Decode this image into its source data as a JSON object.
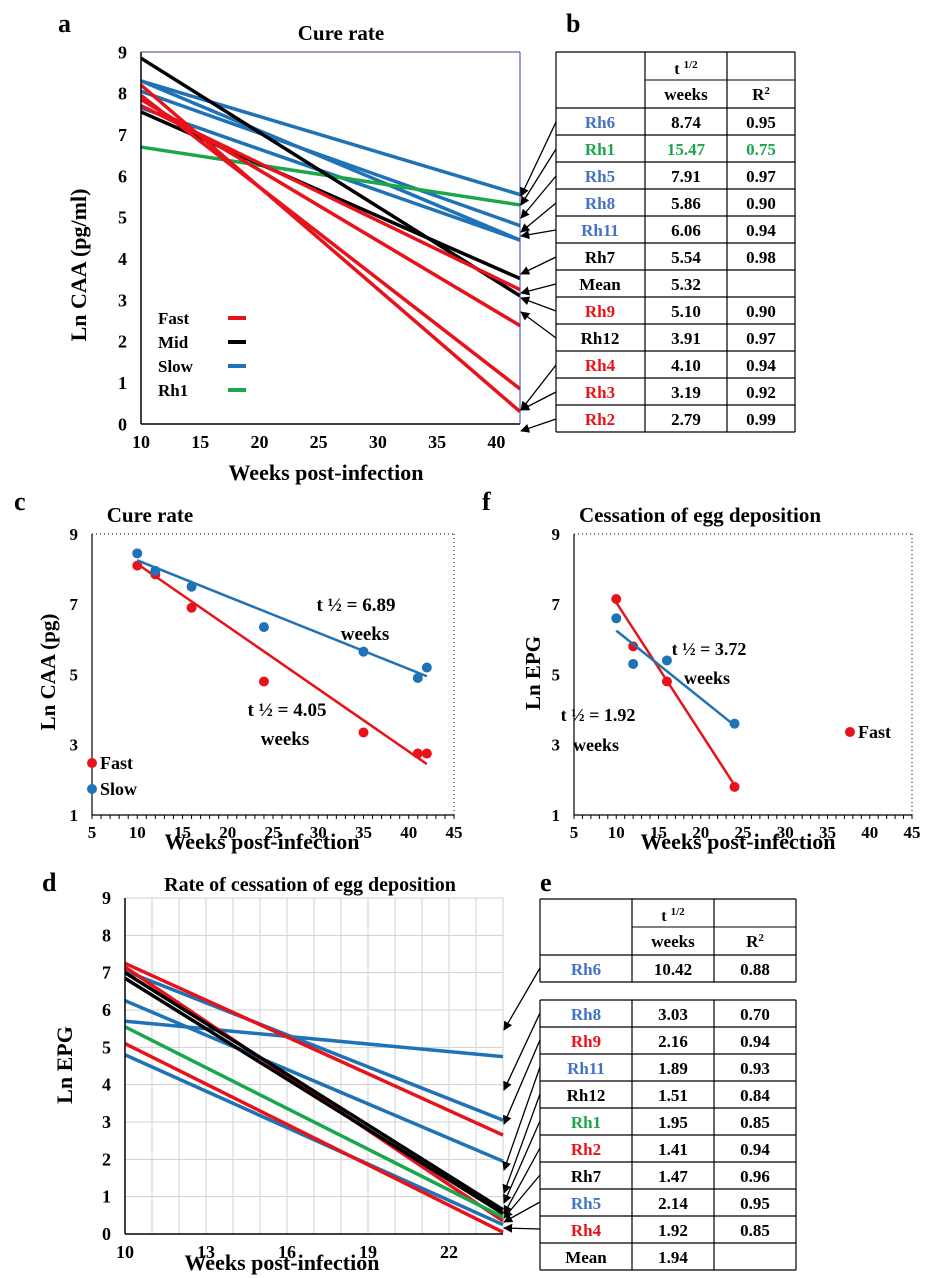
{
  "panels": {
    "a": {
      "letter": "a",
      "title": "Cure rate",
      "xlabel": "Weeks post-infection",
      "ylabel": "Ln CAA (pg/ml)",
      "legend": [
        {
          "label": "Fast",
          "color": "#e8131a"
        },
        {
          "label": "Mid",
          "color": "#000000"
        },
        {
          "label": "Slow",
          "color": "#1f72b6"
        },
        {
          "label": "Rh1",
          "color": "#1aa64a"
        }
      ]
    },
    "b": {
      "letter": "b",
      "header": {
        "t_half": "t",
        "t_half_sup": "1/2",
        "units": "weeks",
        "r2": "R",
        "r2_sup": "2"
      },
      "rows": [
        {
          "name": "Rh6",
          "t": "8.74",
          "r2": "0.95",
          "color": "#4472c4",
          "t_color": "#000000"
        },
        {
          "name": "Rh1",
          "t": "15.47",
          "r2": "0.75",
          "color": "#1aa64a",
          "t_color": "#1aa64a"
        },
        {
          "name": "Rh5",
          "t": "7.91",
          "r2": "0.97",
          "color": "#4472c4",
          "t_color": "#000000"
        },
        {
          "name": "Rh8",
          "t": "5.86",
          "r2": "0.90",
          "color": "#4472c4",
          "t_color": "#000000"
        },
        {
          "name": "Rh11",
          "t": "6.06",
          "r2": "0.94",
          "color": "#4472c4",
          "t_color": "#000000"
        },
        {
          "name": "Rh7",
          "t": "5.54",
          "r2": "0.98",
          "color": "#000000",
          "t_color": "#000000"
        },
        {
          "name": "Mean",
          "t": "5.32",
          "r2": "",
          "color": "#000000",
          "t_color": "#000000"
        },
        {
          "name": "Rh9",
          "t": "5.10",
          "r2": "0.90",
          "color": "#e8131a",
          "t_color": "#000000"
        },
        {
          "name": "Rh12",
          "t": "3.91",
          "r2": "0.97",
          "color": "#000000",
          "t_color": "#000000"
        },
        {
          "name": "Rh4",
          "t": "4.10",
          "r2": "0.94",
          "color": "#e8131a",
          "t_color": "#000000"
        },
        {
          "name": "Rh3",
          "t": "3.19",
          "r2": "0.92",
          "color": "#e8131a",
          "t_color": "#000000"
        },
        {
          "name": "Rh2",
          "t": "2.79",
          "r2": "0.99",
          "color": "#e8131a",
          "t_color": "#000000"
        }
      ]
    },
    "c": {
      "letter": "c",
      "title": "Cure rate",
      "xlabel": "Weeks post-infection",
      "ylabel": "Ln CAA (pg)",
      "legend": [
        {
          "label": "Fast",
          "color": "#e8131a"
        },
        {
          "label": "Slow",
          "color": "#1f72b6"
        }
      ],
      "annotations": [
        {
          "line1": "t ½ = 6.89",
          "line2": "weeks"
        },
        {
          "line1": "t ½ = 4.05",
          "line2": "weeks"
        }
      ]
    },
    "f": {
      "letter": "f",
      "title": "Cessation of egg deposition",
      "xlabel": "Weeks post-infection",
      "ylabel": "Ln EPG",
      "legend": [
        {
          "label": "Fast",
          "color": "#e8131a"
        }
      ],
      "annotations": [
        {
          "line1": "t ½ = 3.72",
          "line2": "weeks"
        },
        {
          "line1": "t ½ = 1.92",
          "line2": "weeks"
        }
      ]
    },
    "d": {
      "letter": "d",
      "title": "Rate of cessation of egg deposition",
      "xlabel": "Weeks post-infection",
      "ylabel": "Ln EPG"
    },
    "e": {
      "letter": "e",
      "header": {
        "t_half": "t",
        "t_half_sup": "1/2",
        "units": "weeks",
        "r2": "R",
        "r2_sup": "2"
      },
      "top_rows": [
        {
          "name": "Rh6",
          "t": "10.42",
          "r2": "0.88",
          "color": "#4472c4"
        }
      ],
      "rows": [
        {
          "name": "Rh8",
          "t": "3.03",
          "r2": "0.70",
          "color": "#4472c4"
        },
        {
          "name": "Rh9",
          "t": "2.16",
          "r2": "0.94",
          "color": "#e8131a"
        },
        {
          "name": "Rh11",
          "t": "1.89",
          "r2": "0.93",
          "color": "#4472c4"
        },
        {
          "name": "Rh12",
          "t": "1.51",
          "r2": "0.84",
          "color": "#000000"
        },
        {
          "name": "Rh1",
          "t": "1.95",
          "r2": "0.85",
          "color": "#1aa64a"
        },
        {
          "name": "Rh2",
          "t": "1.41",
          "r2": "0.94",
          "color": "#e8131a"
        },
        {
          "name": "Rh7",
          "t": "1.47",
          "r2": "0.96",
          "color": "#000000"
        },
        {
          "name": "Rh5",
          "t": "2.14",
          "r2": "0.95",
          "color": "#4472c4"
        },
        {
          "name": "Rh4",
          "t": "1.92",
          "r2": "0.85",
          "color": "#e8131a"
        },
        {
          "name": "Mean",
          "t": "1.94",
          "r2": "",
          "color": "#000000"
        }
      ]
    }
  },
  "chart_data": [
    {
      "panel": "a",
      "type": "line",
      "title": "Cure rate",
      "xlabel": "Weeks post-infection",
      "ylabel": "Ln CAA (pg/ml)",
      "xlim": [
        10,
        42
      ],
      "ylim": [
        0,
        9
      ],
      "xticks": [
        10,
        15,
        20,
        25,
        30,
        35,
        40
      ],
      "yticks": [
        0,
        1,
        2,
        3,
        4,
        5,
        6,
        7,
        8,
        9
      ],
      "grid": false,
      "legend_position": "bottom-left",
      "series": [
        {
          "group": "Slow",
          "color": "#1f72b6",
          "x": [
            10,
            42
          ],
          "y": [
            8.3,
            5.55
          ]
        },
        {
          "group": "Slow",
          "color": "#1f72b6",
          "x": [
            10,
            42
          ],
          "y": [
            8.05,
            4.8
          ]
        },
        {
          "group": "Slow",
          "color": "#1f72b6",
          "x": [
            10,
            42
          ],
          "y": [
            8.3,
            4.45
          ]
        },
        {
          "group": "Slow",
          "color": "#1f72b6",
          "x": [
            10,
            42
          ],
          "y": [
            7.65,
            4.45
          ]
        },
        {
          "group": "Rh1",
          "color": "#1aa64a",
          "x": [
            10,
            42
          ],
          "y": [
            6.7,
            5.3
          ]
        },
        {
          "group": "Mid",
          "color": "#000000",
          "x": [
            10,
            42
          ],
          "y": [
            7.55,
            3.52
          ]
        },
        {
          "group": "Mid",
          "color": "#000000",
          "x": [
            10,
            42
          ],
          "y": [
            8.85,
            3.1
          ]
        },
        {
          "group": "Fast",
          "color": "#e8131a",
          "x": [
            10,
            42
          ],
          "y": [
            7.7,
            3.25
          ]
        },
        {
          "group": "Fast",
          "color": "#e8131a",
          "x": [
            10,
            42
          ],
          "y": [
            7.85,
            2.38
          ]
        },
        {
          "group": "Fast",
          "color": "#e8131a",
          "x": [
            10,
            42
          ],
          "y": [
            7.95,
            0.85
          ]
        },
        {
          "group": "Fast",
          "color": "#e8131a",
          "x": [
            10,
            42
          ],
          "y": [
            8.2,
            0.3
          ]
        }
      ]
    },
    {
      "panel": "c",
      "type": "scatter",
      "title": "Cure rate",
      "xlabel": "Weeks post-infection",
      "ylabel": "Ln CAA (pg)",
      "xlim": [
        5,
        45
      ],
      "ylim": [
        1,
        9
      ],
      "xticks": [
        5,
        10,
        15,
        20,
        25,
        30,
        35,
        40,
        45
      ],
      "yticks": [
        1,
        3,
        5,
        7,
        9
      ],
      "grid": false,
      "legend_position": "bottom-left",
      "series": [
        {
          "name": "Fast",
          "color": "#e8131a",
          "x": [
            10,
            12,
            16,
            24,
            35,
            41,
            42
          ],
          "y": [
            8.1,
            7.85,
            6.9,
            4.8,
            3.35,
            2.75,
            2.75
          ],
          "trend": {
            "x": [
              10,
              42
            ],
            "y": [
              8.15,
              2.45
            ]
          }
        },
        {
          "name": "Slow",
          "color": "#1f72b6",
          "x": [
            10,
            12,
            16,
            24,
            35,
            41,
            42
          ],
          "y": [
            8.45,
            7.95,
            7.5,
            6.35,
            5.65,
            4.9,
            5.2
          ],
          "trend": {
            "x": [
              10,
              42
            ],
            "y": [
              8.25,
              4.95
            ]
          }
        }
      ]
    },
    {
      "panel": "f",
      "type": "scatter",
      "title": "Cessation of egg deposition",
      "xlabel": "Weeks post-infection",
      "ylabel": "Ln EPG",
      "xlim": [
        5,
        45
      ],
      "ylim": [
        1,
        9
      ],
      "xticks": [
        5,
        10,
        15,
        20,
        25,
        30,
        35,
        40,
        45
      ],
      "yticks": [
        1,
        3,
        5,
        7,
        9
      ],
      "grid": false,
      "legend_position": "right",
      "series": [
        {
          "name": "Fast",
          "color": "#e8131a",
          "x": [
            10,
            12,
            16,
            24
          ],
          "y": [
            7.15,
            5.8,
            4.8,
            1.8
          ],
          "trend": {
            "x": [
              10,
              24
            ],
            "y": [
              7.05,
              1.85
            ]
          }
        },
        {
          "color": "#1f72b6",
          "x": [
            10,
            12,
            16,
            24
          ],
          "y": [
            6.6,
            5.3,
            5.4,
            3.6
          ],
          "trend": {
            "x": [
              10,
              24
            ],
            "y": [
              6.25,
              3.55
            ]
          }
        }
      ]
    },
    {
      "panel": "d",
      "type": "line",
      "title": "Rate of cessation of egg deposition",
      "xlabel": "Weeks post-infection",
      "ylabel": "Ln EPG",
      "xlim": [
        10,
        24
      ],
      "ylim": [
        0,
        9
      ],
      "xticks": [
        10,
        13,
        16,
        19,
        22
      ],
      "yticks": [
        0,
        1,
        2,
        3,
        4,
        5,
        6,
        7,
        8,
        9
      ],
      "grid": true,
      "series": [
        {
          "group": "Slow",
          "color": "#1f72b6",
          "x": [
            10,
            24
          ],
          "y": [
            5.7,
            4.75
          ]
        },
        {
          "group": "Slow",
          "color": "#1f72b6",
          "x": [
            10,
            24
          ],
          "y": [
            7.05,
            3.05
          ]
        },
        {
          "group": "Slow",
          "color": "#1f72b6",
          "x": [
            10,
            24
          ],
          "y": [
            6.25,
            1.95
          ]
        },
        {
          "group": "Slow",
          "color": "#1f72b6",
          "x": [
            10,
            24
          ],
          "y": [
            4.8,
            0.25
          ]
        },
        {
          "group": "Fast",
          "color": "#e8131a",
          "x": [
            10,
            24
          ],
          "y": [
            7.25,
            2.65
          ]
        },
        {
          "group": "Fast",
          "color": "#e8131a",
          "x": [
            10,
            24
          ],
          "y": [
            7.15,
            0.35
          ]
        },
        {
          "group": "Fast",
          "color": "#e8131a",
          "x": [
            10,
            24
          ],
          "y": [
            5.1,
            0.05
          ]
        },
        {
          "group": "Rh1",
          "color": "#1aa64a",
          "x": [
            10,
            24
          ],
          "y": [
            5.55,
            0.45
          ]
        },
        {
          "group": "Mid",
          "color": "#000000",
          "x": [
            10,
            24
          ],
          "y": [
            7.0,
            0.65
          ]
        },
        {
          "group": "Mid",
          "color": "#000000",
          "x": [
            10,
            24
          ],
          "y": [
            6.85,
            0.55
          ]
        }
      ]
    }
  ]
}
